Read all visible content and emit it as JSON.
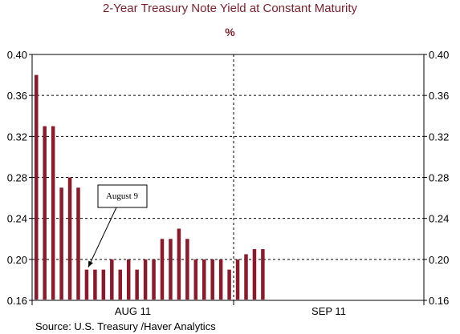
{
  "chart_data": {
    "type": "bar",
    "title": "2-Year Treasury Note Yield at Constant Maturity",
    "subtitle": "%",
    "source": "Source:  U.S. Treasury /Haver Analytics",
    "ylim": [
      0.16,
      0.4
    ],
    "yticks": [
      "0.16",
      "0.20",
      "0.24",
      "0.28",
      "0.32",
      "0.36",
      "0.40"
    ],
    "xlabels": [
      "AUG 11",
      "SEP 11"
    ],
    "grid": true,
    "bar_color": "#8b1a2b",
    "values": [
      0.38,
      0.33,
      0.33,
      0.27,
      0.28,
      0.27,
      0.19,
      0.19,
      0.19,
      0.2,
      0.19,
      0.2,
      0.19,
      0.2,
      0.2,
      0.22,
      0.22,
      0.23,
      0.22,
      0.2,
      0.2,
      0.2,
      0.2,
      0.19,
      0.2,
      0.205,
      0.21,
      0.21
    ],
    "annotation": {
      "text": "August 9",
      "bar_index": 6
    }
  }
}
